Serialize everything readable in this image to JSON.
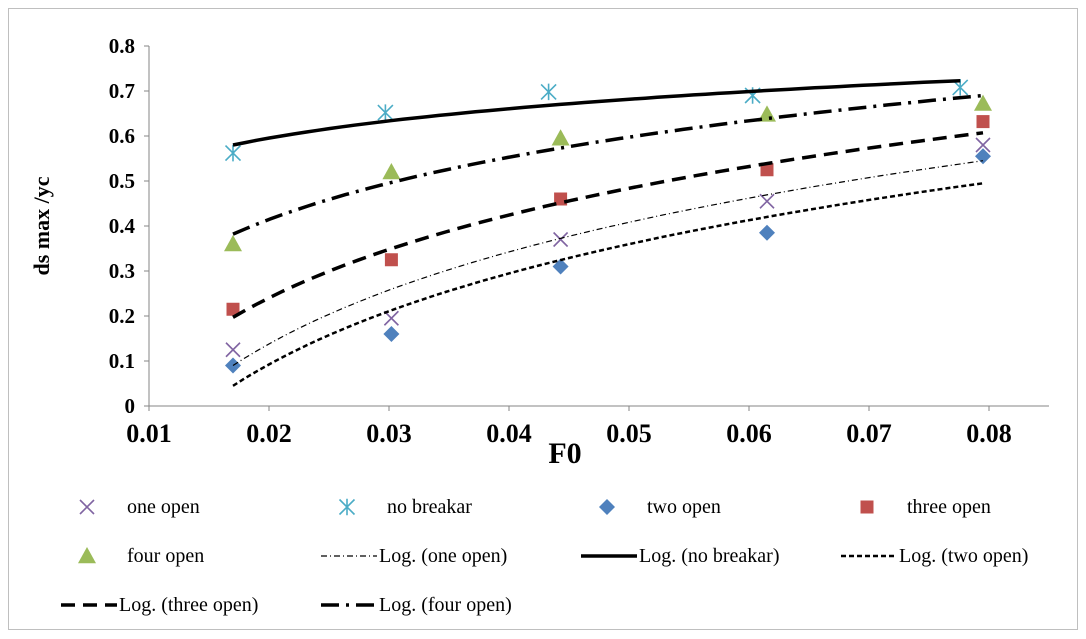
{
  "chart_data": {
    "type": "scatter",
    "title": "",
    "xlabel": "F0",
    "ylabel": "ds max /yc",
    "xlim": [
      0.01,
      0.085
    ],
    "ylim": [
      0,
      0.8
    ],
    "x_ticks": [
      "0.01",
      "0.02",
      "0.03",
      "0.04",
      "0.05",
      "0.06",
      "0.07",
      "0.08"
    ],
    "y_ticks": [
      "0",
      "0.1",
      "0.2",
      "0.3",
      "0.4",
      "0.5",
      "0.6",
      "0.7",
      "0.8"
    ],
    "grid": false,
    "legend_position": "bottom",
    "series": [
      {
        "name": "one open",
        "marker": "x",
        "color": "#8064a2",
        "points": [
          [
            0.017,
            0.125
          ],
          [
            0.0302,
            0.195
          ],
          [
            0.0443,
            0.37
          ],
          [
            0.0615,
            0.455
          ],
          [
            0.0795,
            0.58
          ]
        ]
      },
      {
        "name": "no breakar",
        "marker": "star",
        "color": "#4bacc6",
        "points": [
          [
            0.017,
            0.562
          ],
          [
            0.0297,
            0.652
          ],
          [
            0.0433,
            0.698
          ],
          [
            0.0603,
            0.69
          ],
          [
            0.0776,
            0.708
          ]
        ]
      },
      {
        "name": "two open",
        "marker": "diamond",
        "color": "#4f81bd",
        "points": [
          [
            0.017,
            0.09
          ],
          [
            0.0302,
            0.16
          ],
          [
            0.0443,
            0.31
          ],
          [
            0.0615,
            0.385
          ],
          [
            0.0795,
            0.555
          ]
        ]
      },
      {
        "name": "three open",
        "marker": "square",
        "color": "#c0504d",
        "points": [
          [
            0.017,
            0.215
          ],
          [
            0.0302,
            0.325
          ],
          [
            0.0443,
            0.46
          ],
          [
            0.0615,
            0.525
          ],
          [
            0.0795,
            0.632
          ]
        ]
      },
      {
        "name": "four open",
        "marker": "triangle",
        "color": "#9bbb59",
        "points": [
          [
            0.017,
            0.36
          ],
          [
            0.0302,
            0.52
          ],
          [
            0.0443,
            0.595
          ],
          [
            0.0615,
            0.648
          ],
          [
            0.0795,
            0.672
          ]
        ]
      }
    ],
    "trendlines": [
      {
        "name": "Log. (one open)",
        "type": "logarithmic",
        "dash": "6,3,1,3",
        "stroke": 1.2,
        "color": "#000000",
        "x_range": [
          0.017,
          0.0795
        ],
        "y_ends": [
          0.09,
          0.545
        ]
      },
      {
        "name": "Log. (no breakar)",
        "type": "logarithmic",
        "dash": "",
        "stroke": 3.5,
        "color": "#000000",
        "x_range": [
          0.017,
          0.0776
        ],
        "y_ends": [
          0.58,
          0.723
        ]
      },
      {
        "name": "Log. (two open)",
        "type": "logarithmic",
        "dash": "5,3",
        "stroke": 2.5,
        "color": "#000000",
        "x_range": [
          0.017,
          0.0795
        ],
        "y_ends": [
          0.045,
          0.495
        ]
      },
      {
        "name": "Log. (three open)",
        "type": "logarithmic",
        "dash": "14,8",
        "stroke": 3.5,
        "color": "#000000",
        "x_range": [
          0.017,
          0.0795
        ],
        "y_ends": [
          0.197,
          0.607
        ]
      },
      {
        "name": "Log. (four open)",
        "type": "logarithmic",
        "dash": "18,7,3,7",
        "stroke": 3.5,
        "color": "#000000",
        "x_range": [
          0.017,
          0.0795
        ],
        "y_ends": [
          0.382,
          0.69
        ]
      }
    ],
    "legend_order": [
      "one open",
      "no breakar",
      "two open",
      "three open",
      "four open",
      "Log. (one open)",
      "Log. (no breakar)",
      "Log. (two open)",
      "Log. (three open)",
      "Log. (four open)"
    ]
  }
}
